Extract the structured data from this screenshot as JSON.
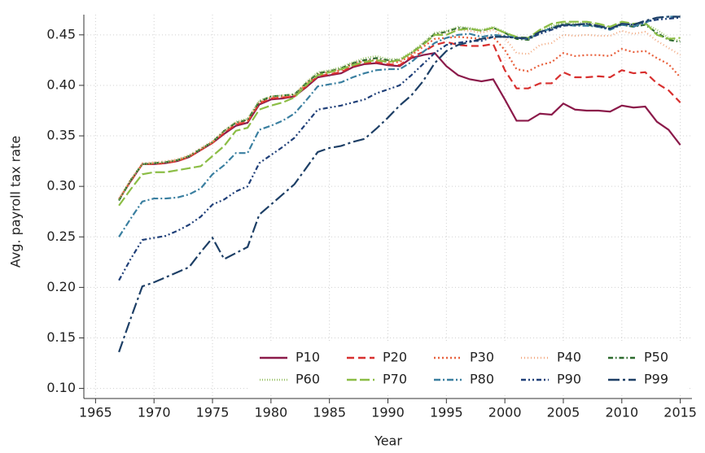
{
  "chart_data": {
    "type": "line",
    "xlabel": "Year",
    "ylabel": "Avg. payroll tax rate",
    "x": [
      1967,
      1968,
      1969,
      1970,
      1971,
      1972,
      1973,
      1974,
      1975,
      1976,
      1977,
      1978,
      1979,
      1980,
      1981,
      1982,
      1983,
      1984,
      1985,
      1986,
      1987,
      1988,
      1989,
      1990,
      1991,
      1992,
      1993,
      1994,
      1995,
      1996,
      1997,
      1998,
      1999,
      2000,
      2001,
      2002,
      2003,
      2004,
      2005,
      2006,
      2007,
      2008,
      2009,
      2010,
      2011,
      2012,
      2013,
      2014,
      2015
    ],
    "xlim": [
      1964,
      2016
    ],
    "xticks": [
      1965,
      1970,
      1975,
      1980,
      1985,
      1990,
      1995,
      2000,
      2005,
      2010,
      2015
    ],
    "ylim": [
      0.09,
      0.47
    ],
    "yticks": [
      {
        "value": 0.1,
        "label": "0.10"
      },
      0.15,
      {
        "value": 0.2,
        "label": "0.20"
      },
      0.25,
      {
        "value": 0.3,
        "label": "0.30"
      },
      0.35,
      {
        "value": 0.4,
        "label": "0.40"
      },
      0.45
    ],
    "grid": true,
    "legend": "lower right",
    "series": [
      {
        "name": "P10",
        "color": "#8b1a4a",
        "dash": "",
        "values": [
          0.287,
          0.305,
          0.322,
          0.322,
          0.323,
          0.325,
          0.329,
          0.336,
          0.343,
          0.352,
          0.36,
          0.363,
          0.381,
          0.386,
          0.387,
          0.389,
          0.398,
          0.408,
          0.41,
          0.412,
          0.418,
          0.421,
          0.422,
          0.42,
          0.419,
          0.427,
          0.43,
          0.432,
          0.419,
          0.41,
          0.406,
          0.404,
          0.406,
          0.386,
          0.365,
          0.365,
          0.372,
          0.371,
          0.382,
          0.376,
          0.375,
          0.375,
          0.374,
          0.38,
          0.378,
          0.379,
          0.364,
          0.356,
          0.341
        ]
      },
      {
        "name": "P20",
        "color": "#d8302f",
        "dash": "9,5",
        "values": [
          0.287,
          0.305,
          0.322,
          0.322,
          0.323,
          0.325,
          0.329,
          0.336,
          0.343,
          0.353,
          0.361,
          0.364,
          0.382,
          0.387,
          0.388,
          0.389,
          0.399,
          0.409,
          0.411,
          0.413,
          0.419,
          0.422,
          0.423,
          0.421,
          0.42,
          0.428,
          0.433,
          0.44,
          0.443,
          0.44,
          0.439,
          0.439,
          0.441,
          0.415,
          0.397,
          0.397,
          0.402,
          0.402,
          0.413,
          0.408,
          0.408,
          0.409,
          0.408,
          0.415,
          0.412,
          0.413,
          0.402,
          0.395,
          0.383
        ]
      },
      {
        "name": "P30",
        "color": "#e8603c",
        "dash": "2,3",
        "values": [
          0.287,
          0.306,
          0.322,
          0.323,
          0.324,
          0.326,
          0.33,
          0.337,
          0.344,
          0.354,
          0.362,
          0.365,
          0.383,
          0.388,
          0.389,
          0.39,
          0.401,
          0.411,
          0.413,
          0.415,
          0.421,
          0.424,
          0.425,
          0.423,
          0.423,
          0.43,
          0.438,
          0.446,
          0.447,
          0.448,
          0.447,
          0.446,
          0.448,
          0.435,
          0.416,
          0.414,
          0.42,
          0.423,
          0.432,
          0.429,
          0.43,
          0.43,
          0.429,
          0.436,
          0.433,
          0.434,
          0.427,
          0.421,
          0.408
        ]
      },
      {
        "name": "P40",
        "color": "#f2a77e",
        "dash": "1,3",
        "values": [
          0.288,
          0.307,
          0.323,
          0.324,
          0.325,
          0.327,
          0.331,
          0.338,
          0.345,
          0.355,
          0.363,
          0.366,
          0.384,
          0.389,
          0.39,
          0.391,
          0.402,
          0.412,
          0.414,
          0.416,
          0.422,
          0.425,
          0.426,
          0.424,
          0.424,
          0.431,
          0.44,
          0.45,
          0.452,
          0.455,
          0.454,
          0.452,
          0.455,
          0.447,
          0.432,
          0.431,
          0.44,
          0.442,
          0.45,
          0.449,
          0.45,
          0.449,
          0.449,
          0.454,
          0.451,
          0.453,
          0.444,
          0.437,
          0.43
        ]
      },
      {
        "name": "P50",
        "color": "#2d6a2e",
        "dash": "6,3,1.5,3",
        "values": [
          0.286,
          0.306,
          0.322,
          0.323,
          0.324,
          0.326,
          0.33,
          0.337,
          0.344,
          0.355,
          0.363,
          0.366,
          0.384,
          0.389,
          0.39,
          0.391,
          0.402,
          0.412,
          0.414,
          0.417,
          0.422,
          0.425,
          0.427,
          0.425,
          0.425,
          0.432,
          0.441,
          0.451,
          0.453,
          0.457,
          0.456,
          0.454,
          0.457,
          0.452,
          0.446,
          0.445,
          0.452,
          0.457,
          0.461,
          0.46,
          0.46,
          0.458,
          0.456,
          0.46,
          0.458,
          0.46,
          0.452,
          0.445,
          0.443
        ]
      },
      {
        "name": "P60",
        "color": "#9dc46c",
        "dash": "1,2",
        "values": [
          0.287,
          0.306,
          0.322,
          0.323,
          0.324,
          0.326,
          0.33,
          0.337,
          0.344,
          0.355,
          0.364,
          0.367,
          0.385,
          0.389,
          0.39,
          0.391,
          0.403,
          0.413,
          0.415,
          0.418,
          0.423,
          0.427,
          0.429,
          0.426,
          0.426,
          0.433,
          0.442,
          0.452,
          0.454,
          0.458,
          0.457,
          0.455,
          0.458,
          0.453,
          0.447,
          0.446,
          0.454,
          0.459,
          0.462,
          0.462,
          0.462,
          0.46,
          0.457,
          0.462,
          0.46,
          0.461,
          0.455,
          0.447,
          0.444
        ]
      },
      {
        "name": "P70",
        "color": "#8bbd45",
        "dash": "12,4",
        "values": [
          0.281,
          0.297,
          0.312,
          0.314,
          0.314,
          0.316,
          0.318,
          0.32,
          0.33,
          0.34,
          0.355,
          0.358,
          0.376,
          0.38,
          0.383,
          0.388,
          0.4,
          0.41,
          0.413,
          0.416,
          0.42,
          0.423,
          0.425,
          0.423,
          0.425,
          0.432,
          0.44,
          0.45,
          0.45,
          0.455,
          0.456,
          0.454,
          0.457,
          0.452,
          0.448,
          0.447,
          0.455,
          0.461,
          0.463,
          0.463,
          0.463,
          0.461,
          0.458,
          0.463,
          0.461,
          0.462,
          0.45,
          0.446,
          0.447
        ]
      },
      {
        "name": "P80",
        "color": "#3a7fa0",
        "dash": "8,3,2,3",
        "values": [
          0.25,
          0.268,
          0.285,
          0.288,
          0.288,
          0.289,
          0.292,
          0.298,
          0.312,
          0.321,
          0.333,
          0.333,
          0.356,
          0.36,
          0.365,
          0.372,
          0.385,
          0.399,
          0.401,
          0.403,
          0.408,
          0.412,
          0.415,
          0.416,
          0.416,
          0.423,
          0.433,
          0.442,
          0.447,
          0.45,
          0.451,
          0.448,
          0.45,
          0.449,
          0.447,
          0.446,
          0.452,
          0.457,
          0.46,
          0.459,
          0.459,
          0.458,
          0.455,
          0.46,
          0.458,
          0.462,
          0.467,
          0.468,
          0.468
        ]
      },
      {
        "name": "P90",
        "color": "#1f3f78",
        "dash": "6,3,2,3,2,3",
        "values": [
          0.207,
          0.228,
          0.247,
          0.249,
          0.251,
          0.256,
          0.262,
          0.27,
          0.282,
          0.287,
          0.295,
          0.3,
          0.323,
          0.331,
          0.339,
          0.348,
          0.362,
          0.376,
          0.378,
          0.38,
          0.383,
          0.386,
          0.392,
          0.396,
          0.4,
          0.41,
          0.421,
          0.432,
          0.44,
          0.442,
          0.444,
          0.444,
          0.448,
          0.448,
          0.447,
          0.446,
          0.451,
          0.455,
          0.459,
          0.46,
          0.461,
          0.458,
          0.456,
          0.461,
          0.46,
          0.463,
          0.465,
          0.466,
          0.467
        ]
      },
      {
        "name": "P99",
        "color": "#1d3f66",
        "dash": "14,4,3,4",
        "values": [
          0.136,
          0.169,
          0.201,
          0.205,
          0.21,
          0.215,
          0.22,
          0.235,
          0.249,
          0.228,
          0.234,
          0.24,
          0.272,
          0.282,
          0.292,
          0.302,
          0.318,
          0.334,
          0.338,
          0.34,
          0.344,
          0.347,
          0.357,
          0.368,
          0.38,
          0.39,
          0.404,
          0.422,
          0.434,
          0.44,
          0.443,
          0.446,
          0.448,
          0.448,
          0.447,
          0.447,
          0.453,
          0.456,
          0.46,
          0.46,
          0.461,
          0.459,
          0.456,
          0.461,
          0.46,
          0.464,
          0.467,
          0.468,
          0.468
        ]
      }
    ]
  }
}
